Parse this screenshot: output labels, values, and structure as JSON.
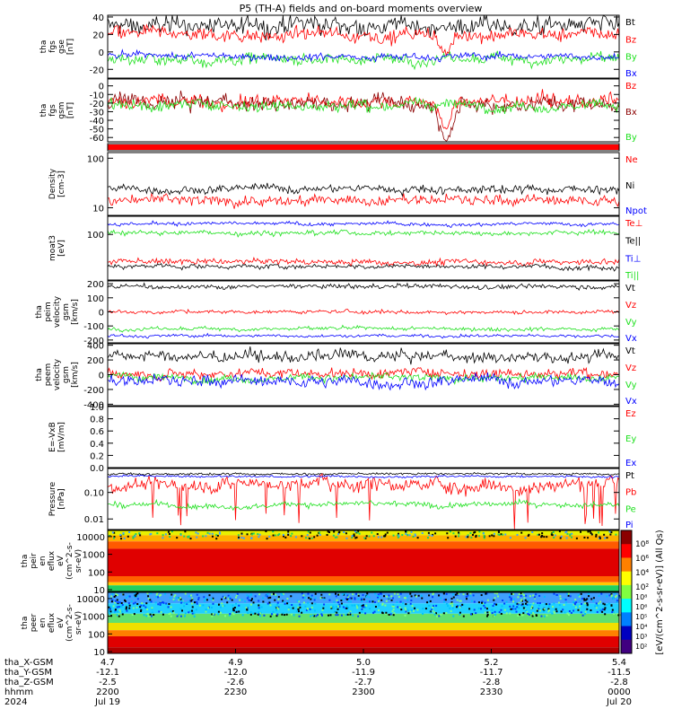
{
  "title": "P5 (TH-A) fields and on-board moments overview",
  "colors": {
    "black": "#000000",
    "red": "#ff0000",
    "green": "#1ee01e",
    "blue": "#0000ff",
    "darkred": "#8b0000"
  },
  "chart_data": [
    {
      "type": "line",
      "id": "fgs-gse",
      "ylabel_lines": [
        "tha",
        "fgs",
        "gse",
        "[nT]"
      ],
      "ylim": [
        -30,
        42
      ],
      "yticks": [
        "40",
        "20",
        "0",
        "-20"
      ],
      "ytick_values": [
        40,
        20,
        0,
        -20
      ],
      "series": [
        {
          "name": "Bt",
          "color": "#000000",
          "base": 30,
          "noise": 8
        },
        {
          "name": "Bz",
          "color": "#ff0000",
          "base": 20,
          "noise": 6
        },
        {
          "name": "By",
          "color": "#1ee01e",
          "base": -8,
          "noise": 5
        },
        {
          "name": "Bx",
          "color": "#0000ff",
          "base": -5,
          "noise": 3
        }
      ]
    },
    {
      "type": "line",
      "id": "fgs-gsm",
      "ylabel_lines": [
        "tha",
        "fgs",
        "gsm",
        "[nT]"
      ],
      "ylim": [
        -65,
        8
      ],
      "yticks": [
        "0",
        "-10",
        "-20",
        "-30",
        "-40",
        "-50",
        "-60"
      ],
      "ytick_values": [
        0,
        -10,
        -20,
        -30,
        -40,
        -50,
        -60
      ],
      "series": [
        {
          "name": "Bz",
          "color": "#ff0000",
          "base": -18,
          "noise": 6
        },
        {
          "name": "Bx",
          "color": "#8b0000",
          "base": -20,
          "noise": 7
        },
        {
          "name": "By",
          "color": "#1ee01e",
          "base": -22,
          "noise": 5
        }
      ]
    },
    {
      "type": "bar-strip",
      "id": "mode-bar",
      "color": "#ff0000"
    },
    {
      "type": "line",
      "id": "density",
      "scale": "log",
      "ylabel_lines": [
        "Density",
        "[cm-3]"
      ],
      "ylim": [
        7,
        130
      ],
      "yticks": [
        "100",
        "10"
      ],
      "ytick_values": [
        100,
        10
      ],
      "series": [
        {
          "name": "Ne",
          "color": "#ff0000",
          "base": 14,
          "noise": 0.08
        },
        {
          "name": "Ni",
          "color": "#000000",
          "base": 24,
          "noise": 0.06
        },
        {
          "name": "Npot",
          "color": "#0000ff",
          "base": null,
          "noise": 0
        }
      ]
    },
    {
      "type": "line",
      "id": "temperature",
      "scale": "log",
      "ylabel_lines": [
        "moat3",
        "[eV]"
      ],
      "ylim": [
        10,
        250
      ],
      "yticks": [
        "100"
      ],
      "ytick_values": [
        100
      ],
      "series": [
        {
          "name": "Te⊥",
          "color": "#ff0000",
          "base": 25,
          "noise": 0.05
        },
        {
          "name": "Te||",
          "color": "#000000",
          "base": 20,
          "noise": 0.04
        },
        {
          "name": "Ti⊥",
          "color": "#0000ff",
          "base": 170,
          "noise": 0.03
        },
        {
          "name": "Ti||",
          "color": "#1ee01e",
          "base": 110,
          "noise": 0.04
        }
      ]
    },
    {
      "type": "line",
      "id": "peim-velocity",
      "ylabel_lines": [
        "tha",
        "peim",
        "velocity",
        "gsm",
        "[km/s]"
      ],
      "ylim": [
        -220,
        220
      ],
      "yticks": [
        "200",
        "100",
        "0",
        "-100",
        "-200"
      ],
      "ytick_values": [
        200,
        100,
        0,
        -100,
        -200
      ],
      "series": [
        {
          "name": "Vt",
          "color": "#000000",
          "base": 180,
          "noise": 12
        },
        {
          "name": "Vz",
          "color": "#ff0000",
          "base": 0,
          "noise": 10
        },
        {
          "name": "Vy",
          "color": "#1ee01e",
          "base": -120,
          "noise": 10
        },
        {
          "name": "Vx",
          "color": "#0000ff",
          "base": -170,
          "noise": 8
        }
      ]
    },
    {
      "type": "line",
      "id": "peem-velocity",
      "ylabel_lines": [
        "tha",
        "peem",
        "velocity",
        "gsm",
        "[km/s]"
      ],
      "ylim": [
        -420,
        420
      ],
      "yticks": [
        "400",
        "200",
        "0",
        "-200",
        "-400"
      ],
      "ytick_values": [
        400,
        200,
        0,
        -200,
        -400
      ],
      "series": [
        {
          "name": "Vt",
          "color": "#000000",
          "base": 240,
          "noise": 60
        },
        {
          "name": "Vz",
          "color": "#ff0000",
          "base": 30,
          "noise": 50
        },
        {
          "name": "Vy",
          "color": "#1ee01e",
          "base": -40,
          "noise": 40
        },
        {
          "name": "Vx",
          "color": "#0000ff",
          "base": -90,
          "noise": 60
        }
      ]
    },
    {
      "type": "line",
      "id": "efield",
      "ylabel_lines": [
        "E=-VxB",
        "[mV/m]"
      ],
      "ylim": [
        0,
        1.0
      ],
      "yticks": [
        "1.0",
        "0.8",
        "0.6",
        "0.4",
        "0.2",
        "0.0"
      ],
      "ytick_values": [
        1.0,
        0.8,
        0.6,
        0.4,
        0.2,
        0.0
      ],
      "series": [
        {
          "name": "Ez",
          "color": "#ff0000",
          "base": null,
          "noise": 0
        },
        {
          "name": "Ey",
          "color": "#1ee01e",
          "base": null,
          "noise": 0
        },
        {
          "name": "Ex",
          "color": "#0000ff",
          "base": null,
          "noise": 0
        }
      ]
    },
    {
      "type": "line",
      "id": "pressure",
      "scale": "log",
      "ylabel_lines": [
        "Pressure",
        "[nPa]"
      ],
      "ylim": [
        0.004,
        0.8
      ],
      "yticks": [
        "0.10",
        "0.01"
      ],
      "ytick_values": [
        0.1,
        0.01
      ],
      "series": [
        {
          "name": "Pt",
          "color": "#000000",
          "base": 0.5,
          "noise": 0.03
        },
        {
          "name": "Pb",
          "color": "#ff0000",
          "base": 0.2,
          "noise": 0.2
        },
        {
          "name": "Pe",
          "color": "#1ee01e",
          "base": 0.035,
          "noise": 0.08
        },
        {
          "name": "Pi",
          "color": "#0000ff",
          "base": 0.4,
          "noise": 0.03
        }
      ]
    },
    {
      "type": "heatmap",
      "id": "peir-spectrogram",
      "ylabel_lines": [
        "tha",
        "peir",
        "en",
        "eflux",
        "eV",
        "(cm^2-s-",
        "sr-eV)"
      ],
      "yticks": [
        "10000",
        "1000",
        "100",
        "10"
      ]
    },
    {
      "type": "heatmap",
      "id": "peer-spectrogram",
      "ylabel_lines": [
        "tha",
        "peer",
        "en",
        "eflux",
        "eV",
        "(cm^2-s-",
        "sr-eV)"
      ],
      "yticks": [
        "10000",
        "1000",
        "100",
        "10"
      ]
    }
  ],
  "colorbar": {
    "ticks_top": [
      "10⁸",
      "10⁶",
      "10⁴",
      "10²"
    ],
    "ticks_bottom": [
      "10⁸",
      "10⁶",
      "10⁵",
      "10⁴",
      "10³",
      "10²"
    ],
    "label": "[eV/(cm^2-s-sr-eV)] (All Qs)"
  },
  "x_axis": {
    "ticks": [
      {
        "x_gsm": "4.7",
        "y_gsm": "-12.1",
        "z_gsm": "-2.5",
        "hhmm": "2200",
        "date": "Jul 19"
      },
      {
        "x_gsm": "4.9",
        "y_gsm": "-12.0",
        "z_gsm": "-2.6",
        "hhmm": "2230",
        "date": ""
      },
      {
        "x_gsm": "5.0",
        "y_gsm": "-11.9",
        "z_gsm": "-2.7",
        "hhmm": "2300",
        "date": ""
      },
      {
        "x_gsm": "5.2",
        "y_gsm": "-11.7",
        "z_gsm": "-2.8",
        "hhmm": "2330",
        "date": ""
      },
      {
        "x_gsm": "5.4",
        "y_gsm": "-11.5",
        "z_gsm": "-2.8",
        "hhmm": "0000",
        "date": "Jul 20"
      }
    ],
    "row_labels": [
      "tha_X-GSM",
      "tha_Y-GSM",
      "tha_Z-GSM",
      "hhmm",
      "2024"
    ]
  }
}
